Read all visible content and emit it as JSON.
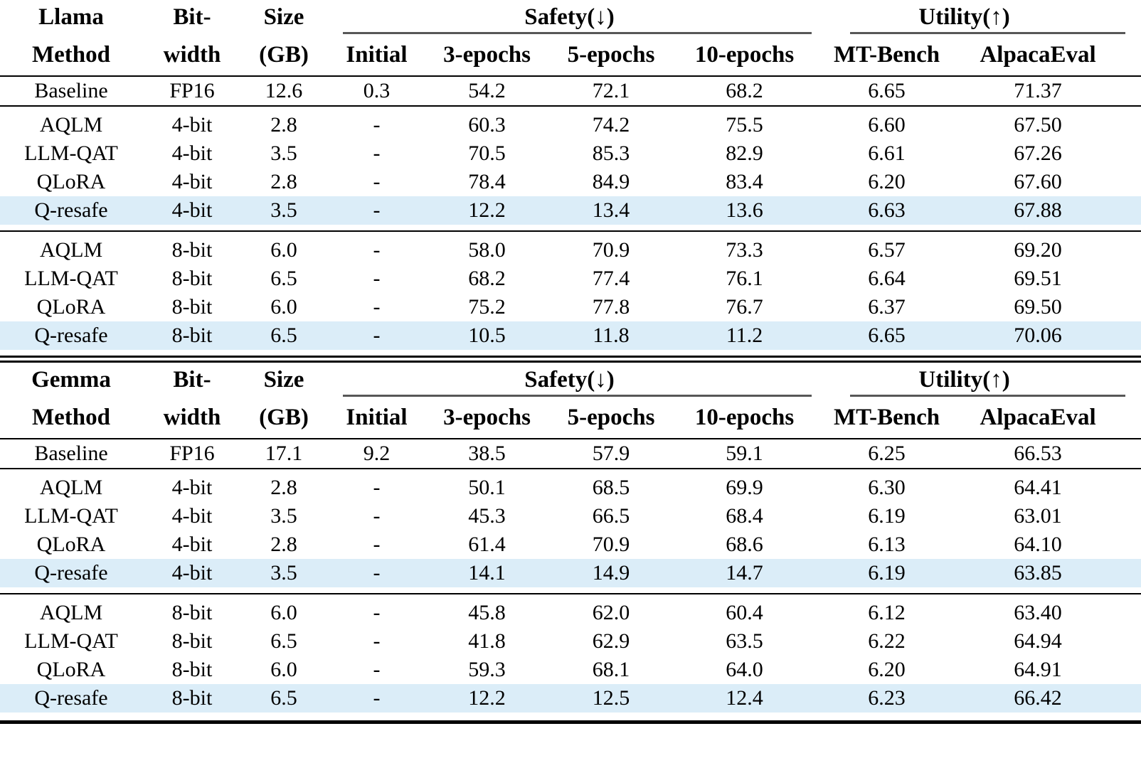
{
  "page": {
    "highlight_color": "#dbedf8",
    "rule_color": "#000000",
    "cmidrule_color": "#575757"
  },
  "shared_header": {
    "col_bit_top": "Bit-",
    "col_bit_bottom": "width",
    "col_size_top": "Size",
    "col_size_bottom": "(GB)",
    "col_method": "Method",
    "safety_label": "Safety(↓)",
    "utility_label": "Utility(↑)",
    "safety_subcols": [
      "Initial",
      "3-epochs",
      "5-epochs",
      "10-epochs"
    ],
    "utility_subcols": [
      "MT-Bench",
      "AlpacaEval"
    ]
  },
  "tables": [
    {
      "id": "llama",
      "model_label": "Llama",
      "baseline": {
        "method": "Baseline",
        "bit_width": "FP16",
        "size_gb": "12.6",
        "values": [
          "0.3",
          "54.2",
          "72.1",
          "68.2",
          "6.65",
          "71.37"
        ],
        "highlight": false
      },
      "sections": [
        {
          "rows": [
            {
              "method": "AQLM",
              "bit_width": "4-bit",
              "size_gb": "2.8",
              "values": [
                "-",
                "60.3",
                "74.2",
                "75.5",
                "6.60",
                "67.50"
              ],
              "highlight": false
            },
            {
              "method": "LLM-QAT",
              "bit_width": "4-bit",
              "size_gb": "3.5",
              "values": [
                "-",
                "70.5",
                "85.3",
                "82.9",
                "6.61",
                "67.26"
              ],
              "highlight": false
            },
            {
              "method": "QLoRA",
              "bit_width": "4-bit",
              "size_gb": "2.8",
              "values": [
                "-",
                "78.4",
                "84.9",
                "83.4",
                "6.20",
                "67.60"
              ],
              "highlight": false
            },
            {
              "method": "Q-resafe",
              "bit_width": "4-bit",
              "size_gb": "3.5",
              "values": [
                "-",
                "12.2",
                "13.4",
                "13.6",
                "6.63",
                "67.88"
              ],
              "highlight": true
            }
          ]
        },
        {
          "rows": [
            {
              "method": "AQLM",
              "bit_width": "8-bit",
              "size_gb": "6.0",
              "values": [
                "-",
                "58.0",
                "70.9",
                "73.3",
                "6.57",
                "69.20"
              ],
              "highlight": false
            },
            {
              "method": "LLM-QAT",
              "bit_width": "8-bit",
              "size_gb": "6.5",
              "values": [
                "-",
                "68.2",
                "77.4",
                "76.1",
                "6.64",
                "69.51"
              ],
              "highlight": false
            },
            {
              "method": "QLoRA",
              "bit_width": "8-bit",
              "size_gb": "6.0",
              "values": [
                "-",
                "75.2",
                "77.8",
                "76.7",
                "6.37",
                "69.50"
              ],
              "highlight": false
            },
            {
              "method": "Q-resafe",
              "bit_width": "8-bit",
              "size_gb": "6.5",
              "values": [
                "-",
                "10.5",
                "11.8",
                "11.2",
                "6.65",
                "70.06"
              ],
              "highlight": true
            }
          ]
        }
      ]
    },
    {
      "id": "gemma",
      "model_label": "Gemma",
      "baseline": {
        "method": "Baseline",
        "bit_width": "FP16",
        "size_gb": "17.1",
        "values": [
          "9.2",
          "38.5",
          "57.9",
          "59.1",
          "6.25",
          "66.53"
        ],
        "highlight": false
      },
      "sections": [
        {
          "rows": [
            {
              "method": "AQLM",
              "bit_width": "4-bit",
              "size_gb": "2.8",
              "values": [
                "-",
                "50.1",
                "68.5",
                "69.9",
                "6.30",
                "64.41"
              ],
              "highlight": false
            },
            {
              "method": "LLM-QAT",
              "bit_width": "4-bit",
              "size_gb": "3.5",
              "values": [
                "-",
                "45.3",
                "66.5",
                "68.4",
                "6.19",
                "63.01"
              ],
              "highlight": false
            },
            {
              "method": "QLoRA",
              "bit_width": "4-bit",
              "size_gb": "2.8",
              "values": [
                "-",
                "61.4",
                "70.9",
                "68.6",
                "6.13",
                "64.10"
              ],
              "highlight": false
            },
            {
              "method": "Q-resafe",
              "bit_width": "4-bit",
              "size_gb": "3.5",
              "values": [
                "-",
                "14.1",
                "14.9",
                "14.7",
                "6.19",
                "63.85"
              ],
              "highlight": true
            }
          ]
        },
        {
          "rows": [
            {
              "method": "AQLM",
              "bit_width": "8-bit",
              "size_gb": "6.0",
              "values": [
                "-",
                "45.8",
                "62.0",
                "60.4",
                "6.12",
                "63.40"
              ],
              "highlight": false
            },
            {
              "method": "LLM-QAT",
              "bit_width": "8-bit",
              "size_gb": "6.5",
              "values": [
                "-",
                "41.8",
                "62.9",
                "63.5",
                "6.22",
                "64.94"
              ],
              "highlight": false
            },
            {
              "method": "QLoRA",
              "bit_width": "8-bit",
              "size_gb": "6.0",
              "values": [
                "-",
                "59.3",
                "68.1",
                "64.0",
                "6.20",
                "64.91"
              ],
              "highlight": false
            },
            {
              "method": "Q-resafe",
              "bit_width": "8-bit",
              "size_gb": "6.5",
              "values": [
                "-",
                "12.2",
                "12.5",
                "12.4",
                "6.23",
                "66.42"
              ],
              "highlight": true
            }
          ]
        }
      ]
    }
  ]
}
